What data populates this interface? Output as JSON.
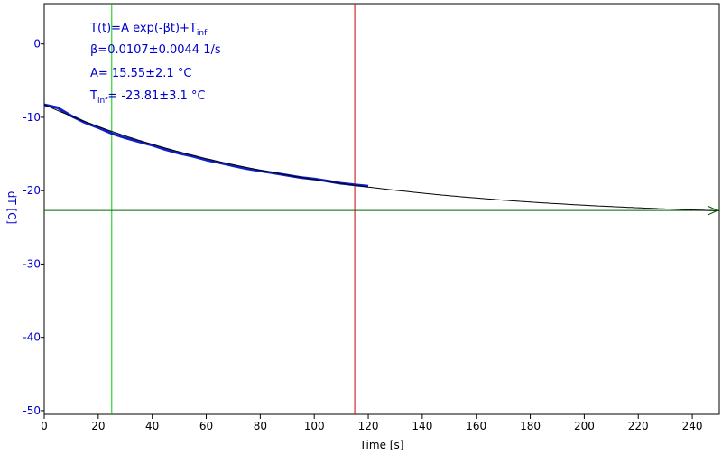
{
  "chart_data": {
    "type": "line",
    "xlabel": "Time [s]",
    "ylabel": "dT [C]",
    "xlim": [
      0,
      250
    ],
    "ylim": [
      -50.5,
      5.5
    ],
    "x_ticks": [
      0,
      20,
      40,
      60,
      80,
      100,
      120,
      140,
      160,
      180,
      200,
      220,
      240
    ],
    "y_ticks": [
      0,
      -10,
      -20,
      -30,
      -40,
      -50
    ],
    "grid": false,
    "annotations": {
      "model": "T(t)=A exp(-βt)+T",
      "model_sub": "inf",
      "beta": "β=0.0107±0.0044 1/s",
      "amplitude": "A= 15.55±2.1 °C",
      "tinf_prefix": "T",
      "tinf_sub": "inf",
      "tinf_value": "= -23.81±3.1 °C"
    },
    "fit": {
      "A": 15.55,
      "beta": 0.0107,
      "T_inf": -23.81,
      "x_start": 0,
      "x_end": 250
    },
    "measured": {
      "x": [
        0,
        5,
        10,
        15,
        20,
        25,
        30,
        35,
        40,
        45,
        50,
        55,
        60,
        65,
        70,
        75,
        80,
        85,
        90,
        95,
        100,
        105,
        110,
        115,
        120
      ],
      "y": [
        -8.3,
        -8.7,
        -9.8,
        -10.7,
        -11.4,
        -12.2,
        -12.8,
        -13.3,
        -13.8,
        -14.4,
        -14.9,
        -15.3,
        -15.8,
        -16.2,
        -16.6,
        -17.0,
        -17.3,
        -17.6,
        -17.9,
        -18.2,
        -18.4,
        -18.7,
        -19.0,
        -19.2,
        -19.4
      ]
    },
    "cursors": {
      "green_x": 25,
      "red_x": 115,
      "horizontal_y": -22.7
    },
    "colors": {
      "axis_text": "#0000cc",
      "measured": "#1020c8",
      "fit": "#000000",
      "green_cursor": "#00cc00",
      "red_cursor": "#cc0000",
      "horizontal_line": "#006600"
    }
  }
}
